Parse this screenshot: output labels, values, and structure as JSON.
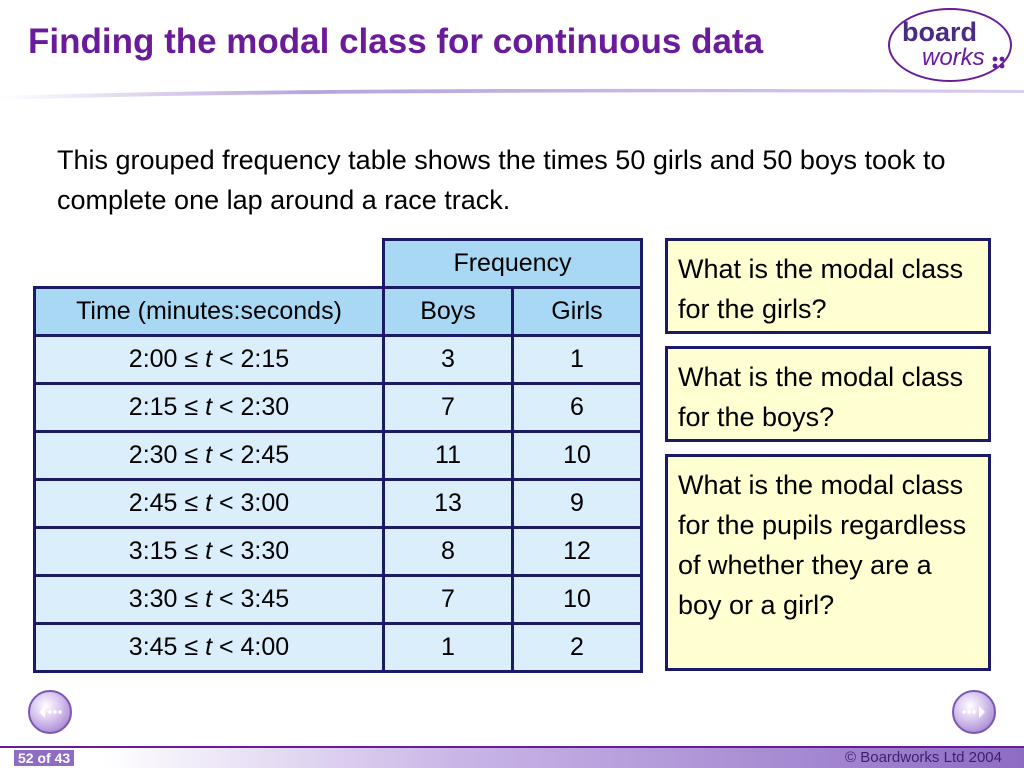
{
  "slide": {
    "title": "Finding the modal class for continuous data",
    "intro": "This grouped frequency table shows the times 50 girls and 50 boys took to complete one lap around a race track."
  },
  "logo": {
    "word1": "board",
    "word2": "works"
  },
  "table": {
    "group_header": "Frequency",
    "headers": [
      "Time (minutes:seconds)",
      "Boys",
      "Girls"
    ],
    "rows": [
      {
        "lower": "2:00 ≤ ",
        "var": "t",
        "upper": " < 2:15",
        "boys": "3",
        "girls": "1"
      },
      {
        "lower": "2:15 ≤ ",
        "var": "t",
        "upper": " < 2:30",
        "boys": "7",
        "girls": "6"
      },
      {
        "lower": "2:30 ≤ ",
        "var": "t",
        "upper": " < 2:45",
        "boys": "11",
        "girls": "10"
      },
      {
        "lower": "2:45 ≤ ",
        "var": "t",
        "upper": " < 3:00",
        "boys": "13",
        "girls": "9"
      },
      {
        "lower": "3:15 ≤ ",
        "var": "t",
        "upper": " < 3:30",
        "boys": "8",
        "girls": "12"
      },
      {
        "lower": "3:30 ≤ ",
        "var": "t",
        "upper": " < 3:45",
        "boys": "7",
        "girls": "10"
      },
      {
        "lower": "3:45 ≤ ",
        "var": "t",
        "upper": " < 4:00",
        "boys": "1",
        "girls": "2"
      }
    ]
  },
  "questions": [
    "What is the modal class for the girls?",
    "What is the modal class for the boys?",
    "What is the modal class for the pupils regardless of whether they are a boy or a girl?"
  ],
  "footer": {
    "page": "52 of 43",
    "copyright": "© Boardworks Ltd 2004"
  },
  "colors": {
    "title": "#6a1b9a",
    "header_cell": "#a9d8f5",
    "body_cell": "#dbeefb",
    "question_box": "#ffffd2",
    "border": "#1a1a66"
  },
  "icons": {
    "prev": "previous-slide-icon",
    "next": "next-slide-icon"
  }
}
